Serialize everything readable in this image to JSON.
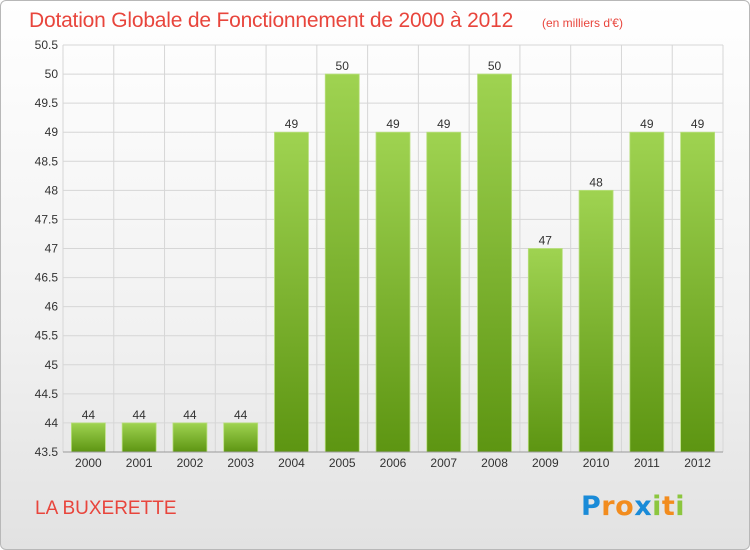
{
  "header": {
    "title": "Dotation Globale de Fonctionnement de 2000 à 2012",
    "unit": "(en milliers d'€)"
  },
  "footer": {
    "commune": "LA BUXERETTE",
    "logo_text": "Proxiti",
    "logo_letters": [
      {
        "ch": "P",
        "color": "#1a8bd8"
      },
      {
        "ch": "r",
        "color": "#f28c1e"
      },
      {
        "ch": "o",
        "color": "#f28c1e"
      },
      {
        "ch": "x",
        "color": "#1a8bd8"
      },
      {
        "ch": "i",
        "color": "#8cc63f"
      },
      {
        "ch": "t",
        "color": "#f28c1e"
      },
      {
        "ch": "i",
        "color": "#8cc63f"
      }
    ]
  },
  "colors": {
    "title": "#e8453c",
    "bar_light": "#9fd351",
    "bar_dark": "#5d9512",
    "grid": "#d6d6d6",
    "axis_text": "#333333"
  },
  "chart_data": {
    "type": "bar",
    "categories": [
      "2000",
      "2001",
      "2002",
      "2003",
      "2004",
      "2005",
      "2006",
      "2007",
      "2008",
      "2009",
      "2010",
      "2011",
      "2012"
    ],
    "values": [
      44,
      44,
      44,
      44,
      49,
      50,
      49,
      49,
      50,
      47,
      48,
      49,
      49
    ],
    "value_labels": [
      "44",
      "44",
      "44",
      "44",
      "49",
      "50",
      "49",
      "49",
      "50",
      "47",
      "48",
      "49",
      "49"
    ],
    "ylim": [
      43.5,
      50.5
    ],
    "yticks": [
      43.5,
      44,
      44.5,
      45,
      45.5,
      46,
      46.5,
      47,
      47.5,
      48,
      48.5,
      49,
      49.5,
      50,
      50.5
    ],
    "ytick_labels": [
      "43.5",
      "44",
      "44.5",
      "45",
      "45.5",
      "46",
      "46.5",
      "47",
      "47.5",
      "48",
      "48.5",
      "49",
      "49.5",
      "50",
      "50.5"
    ],
    "grid": true,
    "legend": "none"
  }
}
